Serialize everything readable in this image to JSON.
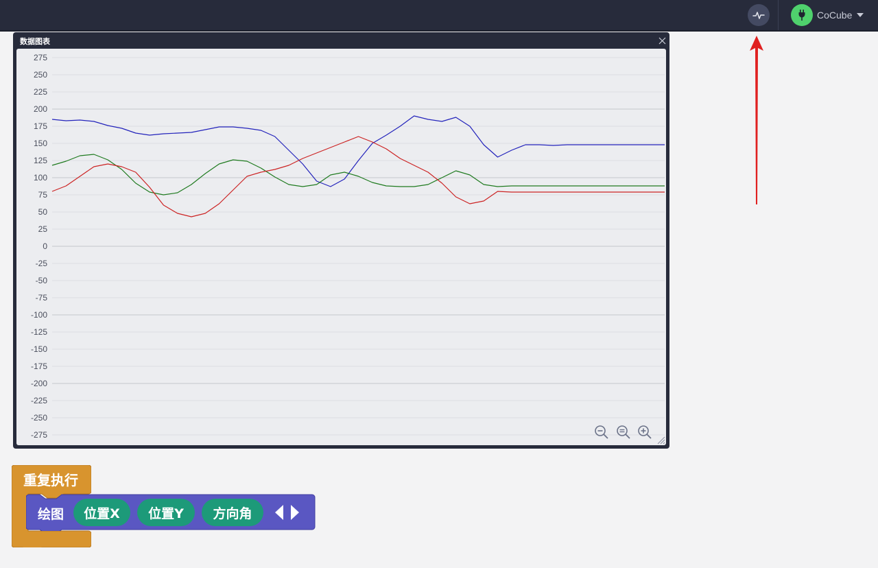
{
  "header": {
    "chart_button_icon": "pulse-chart-icon",
    "device": {
      "icon": "plug-icon",
      "name": "CoCube",
      "status_color": "#4fd16d"
    }
  },
  "chart_window": {
    "title": "数据图表",
    "close_icon": "close-icon",
    "controls": [
      "zoom-out-icon",
      "zoom-reset-icon",
      "zoom-in-icon"
    ],
    "chart_data": {
      "type": "line",
      "title": "",
      "xlabel": "",
      "ylabel": "",
      "ylim": [
        -275,
        275
      ],
      "yticks": [
        275,
        250,
        225,
        200,
        175,
        150,
        125,
        100,
        75,
        50,
        25,
        0,
        -25,
        -50,
        -75,
        -100,
        -125,
        -150,
        -175,
        -200,
        -225,
        -250,
        -275
      ],
      "grid": true,
      "x": [
        0,
        20,
        40,
        60,
        80,
        100,
        120,
        140,
        160,
        180,
        200,
        220,
        240,
        260,
        280,
        300,
        320,
        340,
        360,
        380,
        400,
        420,
        440,
        460,
        480,
        500,
        520,
        540,
        560,
        580,
        600,
        620,
        640,
        660,
        680,
        700,
        720,
        740,
        760,
        780,
        800,
        820,
        840,
        860,
        880
      ],
      "series": [
        {
          "name": "位置X",
          "color": "#2222bb",
          "values": [
            185,
            183,
            184,
            182,
            176,
            172,
            165,
            162,
            164,
            165,
            166,
            170,
            174,
            174,
            172,
            169,
            160,
            140,
            120,
            95,
            87,
            98,
            125,
            150,
            162,
            175,
            190,
            185,
            182,
            188,
            175,
            148,
            130,
            140,
            148,
            148,
            147,
            148,
            148,
            148,
            148,
            148,
            148,
            148,
            148
          ]
        },
        {
          "name": "位置Y",
          "color": "#1e7a1e",
          "values": [
            118,
            124,
            132,
            134,
            126,
            112,
            92,
            79,
            75,
            78,
            90,
            106,
            120,
            126,
            124,
            114,
            101,
            90,
            87,
            90,
            104,
            108,
            102,
            93,
            88,
            87,
            87,
            90,
            100,
            110,
            104,
            90,
            87,
            88,
            88,
            88,
            88,
            88,
            88,
            88,
            88,
            88,
            88,
            88,
            88
          ]
        },
        {
          "name": "方向角",
          "color": "#cc2222",
          "values": [
            80,
            88,
            102,
            116,
            120,
            116,
            108,
            86,
            60,
            48,
            43,
            48,
            62,
            82,
            102,
            108,
            112,
            118,
            128,
            136,
            144,
            152,
            160,
            152,
            142,
            128,
            118,
            108,
            92,
            72,
            62,
            66,
            80,
            79,
            79,
            79,
            79,
            79,
            79,
            79,
            79,
            79,
            79,
            79,
            79
          ]
        }
      ]
    }
  },
  "blocks": {
    "repeat_label": "重复执行",
    "plot_label": "绘图",
    "args": [
      "位置X",
      "位置Y",
      "方向角"
    ],
    "colors": {
      "control": "#d8942e",
      "plot": "#5a57c2",
      "sensor": "#1d9a79"
    }
  },
  "annotation": {
    "arrow_color": "#e02020"
  }
}
